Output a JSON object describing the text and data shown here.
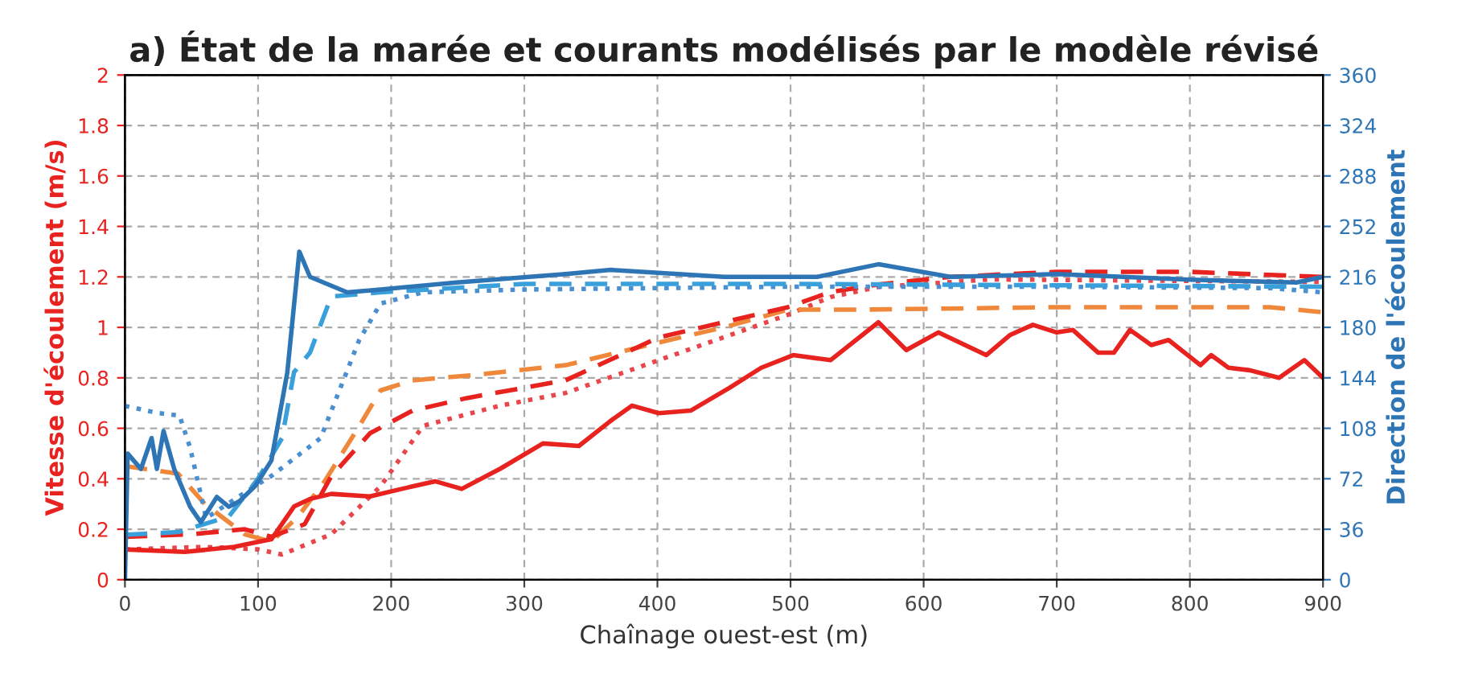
{
  "chart_data": {
    "type": "line",
    "title": "a) État de la marée et courants modélisés par le modèle révisé",
    "xlabel": "Chaînage ouest-est (m)",
    "ylabel": "Vitesse d'écoulement (m/s)",
    "y2label": "Direction de l'écoulement",
    "xlim": [
      0,
      900
    ],
    "xticks": [
      0,
      100,
      200,
      300,
      400,
      500,
      600,
      700,
      800,
      900
    ],
    "ylim": [
      0,
      2
    ],
    "yticks": [
      0,
      0.2,
      0.4,
      0.6,
      0.8,
      1,
      1.2,
      1.4,
      1.6,
      1.8,
      2
    ],
    "y2lim": [
      0,
      360
    ],
    "y2ticks": [
      0,
      36,
      72,
      108,
      144,
      180,
      216,
      252,
      288,
      324,
      360
    ],
    "grid": true,
    "marker": "none",
    "series": [
      {
        "color": "#4a8fd0",
        "line_style": "dotted",
        "axis": "y2",
        "x": [
          0,
          24,
          41,
          49,
          61,
          98,
          110,
          147,
          176,
          192,
          224,
          300,
          500,
          700,
          860,
          900
        ],
        "values": [
          124,
          119,
          117,
          94,
          44,
          67,
          74,
          101,
          171,
          197,
          205,
          207,
          209,
          209,
          208,
          205
        ]
      },
      {
        "color": "#3aa0dc",
        "line_style": "dashed",
        "axis": "y2",
        "x": [
          0,
          40,
          78,
          100,
          118,
          127,
          139,
          155,
          192,
          300,
          500,
          700,
          900
        ],
        "values": [
          32,
          34,
          45,
          72,
          101,
          148,
          162,
          202,
          205,
          211,
          211,
          210,
          209
        ]
      },
      {
        "color": "#2e75b6",
        "line_style": "solid",
        "axis": "y2",
        "x": [
          0,
          2,
          12,
          20,
          24,
          29,
          37,
          49,
          57,
          69,
          78,
          86,
          98,
          110,
          122,
          131,
          139,
          167,
          192,
          249,
          331,
          365,
          450,
          520,
          566,
          620,
          700,
          800,
          880,
          900
        ],
        "values": [
          0,
          90,
          79,
          101,
          79,
          106,
          79,
          52,
          41,
          59,
          52,
          56,
          67,
          85,
          148,
          234,
          216,
          205,
          207,
          212,
          218,
          221,
          216,
          216,
          225,
          216,
          218,
          214,
          212,
          216
        ]
      },
      {
        "color": "#e8464a",
        "line_style": "dotted",
        "x": [
          0,
          60,
          100,
          118,
          155,
          192,
          224,
          282,
          331,
          401,
          498,
          530,
          566,
          650,
          900
        ],
        "values": [
          0.12,
          0.13,
          0.12,
          0.1,
          0.18,
          0.37,
          0.61,
          0.69,
          0.74,
          0.87,
          1.05,
          1.12,
          1.16,
          1.19,
          1.18
        ]
      },
      {
        "color": "#f0883c",
        "line_style": "dashed",
        "x": [
          0,
          40,
          60,
          90,
          110,
          130,
          150,
          175,
          192,
          216,
          260,
          331,
          401,
          450,
          498,
          550,
          700,
          860,
          900
        ],
        "values": [
          0.45,
          0.42,
          0.3,
          0.18,
          0.15,
          0.25,
          0.39,
          0.6,
          0.75,
          0.79,
          0.81,
          0.85,
          0.94,
          1.0,
          1.07,
          1.07,
          1.08,
          1.08,
          1.06
        ]
      },
      {
        "color": "#e8231f",
        "line_style": "dashed",
        "x": [
          0,
          50,
          90,
          110,
          135,
          155,
          184,
          216,
          257,
          331,
          401,
          498,
          530,
          566,
          620,
          700,
          800,
          900
        ],
        "values": [
          0.17,
          0.18,
          0.2,
          0.17,
          0.22,
          0.41,
          0.58,
          0.67,
          0.72,
          0.79,
          0.96,
          1.08,
          1.14,
          1.17,
          1.2,
          1.22,
          1.22,
          1.2
        ]
      },
      {
        "color": "#e8231f",
        "line_style": "solid",
        "x": [
          0,
          45,
          82,
          100,
          110,
          127,
          139,
          155,
          184,
          208,
          233,
          253,
          282,
          314,
          341,
          365,
          381,
          401,
          425,
          454,
          478,
          502,
          530,
          566,
          587,
          611,
          647,
          665,
          682,
          700,
          712,
          731,
          743,
          755,
          771,
          784,
          808,
          816,
          829,
          845,
          867,
          886,
          900
        ],
        "values": [
          0.12,
          0.11,
          0.13,
          0.15,
          0.16,
          0.29,
          0.32,
          0.34,
          0.33,
          0.36,
          0.39,
          0.36,
          0.44,
          0.54,
          0.53,
          0.63,
          0.69,
          0.66,
          0.67,
          0.76,
          0.84,
          0.89,
          0.87,
          1.02,
          0.91,
          0.98,
          0.89,
          0.97,
          1.01,
          0.98,
          0.99,
          0.9,
          0.9,
          0.99,
          0.93,
          0.95,
          0.85,
          0.89,
          0.84,
          0.83,
          0.8,
          0.87,
          0.8
        ]
      }
    ]
  }
}
